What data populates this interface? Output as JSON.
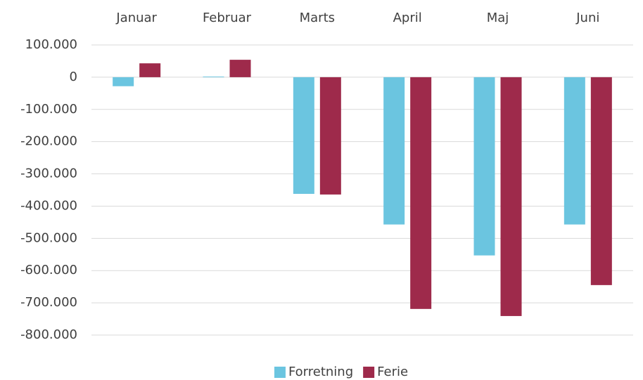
{
  "chart_data": {
    "type": "bar",
    "categories": [
      "Januar",
      "Februar",
      "Marts",
      "April",
      "Maj",
      "Juni"
    ],
    "series": [
      {
        "name": "Forretning",
        "color": "#6bc5e0",
        "values": [
          -28000,
          2000,
          -362000,
          -457000,
          -553000,
          -457000
        ]
      },
      {
        "name": "Ferie",
        "color": "#9e2a4b",
        "values": [
          43000,
          54000,
          -364000,
          -719000,
          -741000,
          -645000
        ]
      }
    ],
    "ylim": [
      -800000,
      100000
    ],
    "yticks": [
      {
        "value": 100000,
        "label": "100.000"
      },
      0,
      {
        "value": -100000,
        "label": "-100.000"
      },
      {
        "value": -200000,
        "label": "-200.000"
      },
      {
        "value": -300000,
        "label": "-300.000"
      },
      {
        "value": -400000,
        "label": "-400.000"
      },
      {
        "value": -500000,
        "label": "-500.000"
      },
      {
        "value": -600000,
        "label": "-600.000"
      },
      {
        "value": -700000,
        "label": "-700.000"
      },
      {
        "value": -800000,
        "label": "-800.000"
      }
    ],
    "grid": true,
    "legend": "bottom"
  }
}
